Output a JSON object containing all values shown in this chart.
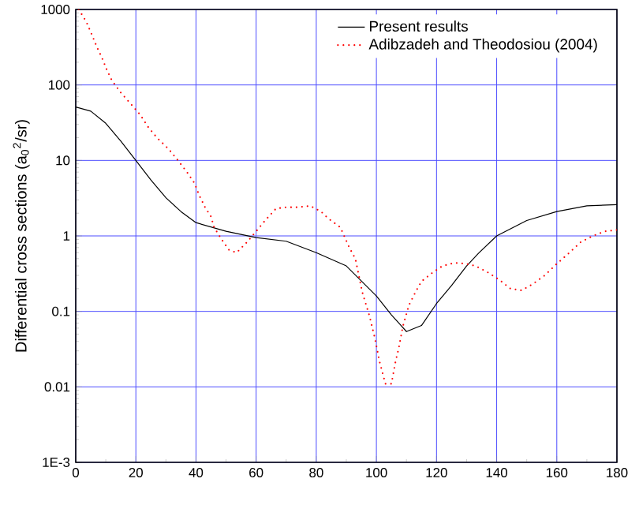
{
  "chart_data": {
    "type": "line",
    "ylabel": "Differential cross sections (a$_{0}$$^{2}$/sr)",
    "log": "y",
    "grid": true,
    "legend": "top right",
    "xlim": [
      0,
      180
    ],
    "xticks": [
      0,
      20,
      40,
      60,
      80,
      100,
      120,
      140,
      160,
      180
    ],
    "ylim": [
      0.001,
      1000
    ],
    "yticks": [
      {
        "value": 0.001,
        "label": "1E-3"
      },
      0.01,
      0.1,
      1,
      10,
      100,
      1000
    ],
    "series": [
      {
        "name": "Present results",
        "color": "#000000",
        "line_style": "solid",
        "x": [
          0,
          5,
          10,
          15,
          20,
          25,
          30,
          35,
          40,
          50,
          60,
          70,
          80,
          90,
          100,
          105,
          110,
          115,
          120,
          125,
          130,
          134,
          140,
          150,
          160,
          170,
          180
        ],
        "values": [
          51,
          45,
          31,
          18,
          10,
          5.5,
          3.2,
          2.1,
          1.5,
          1.15,
          0.95,
          0.85,
          0.6,
          0.4,
          0.16,
          0.09,
          0.054,
          0.065,
          0.127,
          0.22,
          0.4,
          0.59,
          1.0,
          1.6,
          2.1,
          2.5,
          2.6
        ]
      },
      {
        "name": "Adibzadeh and Theodosiou (2004)",
        "color": "#ff0000",
        "line_style": "dotted",
        "x": [
          1,
          3.5,
          5.5,
          7,
          8.7,
          10.3,
          12,
          15,
          18.5,
          21.5,
          24,
          27,
          31,
          34,
          37,
          39.5,
          41,
          43,
          45,
          46,
          48.5,
          51,
          53.5,
          57,
          60,
          63,
          66.6,
          70,
          74,
          78,
          81.6,
          84,
          88,
          91,
          93,
          95.3,
          97.7,
          99.5,
          101,
          103,
          105,
          106.4,
          107.4,
          108.8,
          110.8,
          113,
          115,
          118.4,
          122,
          126,
          129.5,
          133,
          137,
          141,
          144.6,
          148.3,
          152,
          156,
          159.8,
          164,
          168,
          172,
          176,
          180
        ],
        "values": [
          1000,
          690,
          450,
          320,
          230,
          160,
          115,
          79,
          55,
          40,
          28,
          20,
          14,
          10,
          7,
          5,
          3.5,
          2.4,
          1.8,
          1.3,
          0.9,
          0.65,
          0.6,
          0.83,
          1.15,
          1.6,
          2.3,
          2.4,
          2.4,
          2.5,
          2.1,
          1.7,
          1.3,
          0.7,
          0.5,
          0.18,
          0.087,
          0.044,
          0.022,
          0.011,
          0.011,
          0.022,
          0.032,
          0.063,
          0.12,
          0.18,
          0.25,
          0.32,
          0.4,
          0.44,
          0.43,
          0.4,
          0.33,
          0.26,
          0.2,
          0.19,
          0.23,
          0.3,
          0.42,
          0.59,
          0.83,
          1.0,
          1.15,
          1.2
        ]
      }
    ]
  }
}
